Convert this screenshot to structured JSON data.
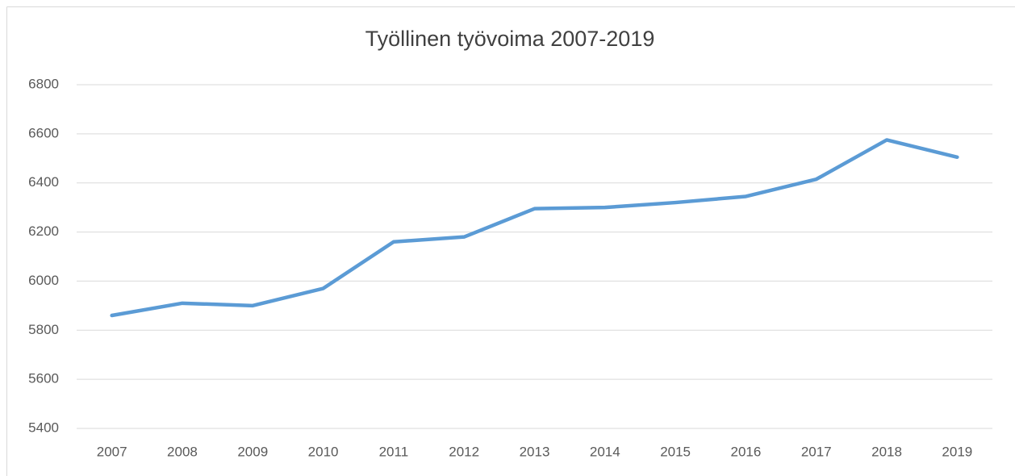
{
  "chart_data": {
    "type": "line",
    "title": "Työllinen työvoima 2007-2019",
    "categories": [
      "2007",
      "2008",
      "2009",
      "2010",
      "2011",
      "2012",
      "2013",
      "2014",
      "2015",
      "2016",
      "2017",
      "2018",
      "2019"
    ],
    "series": [
      {
        "name": "Työllinen työvoima",
        "color": "#5b9bd5",
        "values": [
          5860,
          5910,
          5900,
          5970,
          6160,
          6180,
          6295,
          6300,
          6320,
          6345,
          6415,
          6575,
          6505
        ]
      }
    ],
    "ylim": [
      5400,
      6800
    ],
    "yticks": [
      5400,
      5600,
      5800,
      6000,
      6200,
      6400,
      6600,
      6800
    ],
    "grid": true
  }
}
